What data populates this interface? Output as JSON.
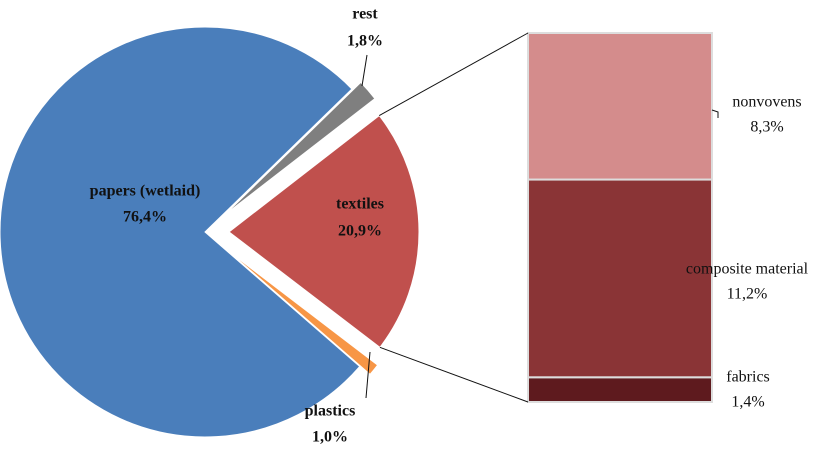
{
  "chart_data": [
    {
      "type": "pie",
      "categories": [
        "papers (wetlaid)",
        "rest",
        "textiles",
        "plastics"
      ],
      "values": [
        76.4,
        1.8,
        20.9,
        1.0
      ],
      "value_labels": [
        "76,4%",
        "1,8%",
        "20,9%",
        "1,0%"
      ],
      "colors": [
        "#4a7ebb",
        "#7f7f7f",
        "#c0504d",
        "#f79646"
      ]
    },
    {
      "type": "bar",
      "stacked": true,
      "categories": [
        "nonvovens",
        "composite material",
        "fabrics"
      ],
      "values": [
        8.3,
        11.2,
        1.4
      ],
      "value_labels": [
        "8,3%",
        "11,2%",
        "1,4%"
      ],
      "colors": [
        "#d48c8c",
        "#8a3436",
        "#5e1a1e"
      ]
    }
  ]
}
